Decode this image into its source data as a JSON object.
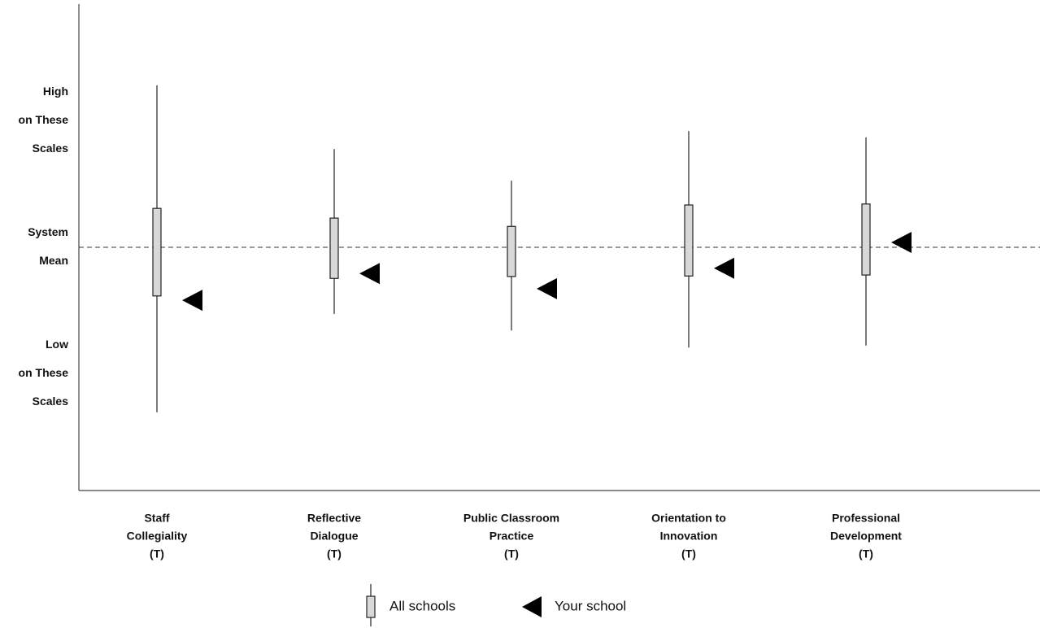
{
  "chart_data": {
    "type": "box",
    "categories": [
      [
        "Staff",
        "Collegiality",
        "(T)"
      ],
      [
        "Reflective",
        "Dialogue",
        "(T)"
      ],
      [
        "Public  Classroom",
        "Practice",
        "(T)"
      ],
      [
        "Orientation  to",
        "Innovation",
        "(T)"
      ],
      [
        "Professional",
        "Development",
        "(T)"
      ]
    ],
    "ylim": [
      0,
      100
    ],
    "yticks": [
      {
        "value": 76,
        "label": [
          "High",
          "on These",
          "Scales"
        ]
      },
      {
        "value": 50,
        "label": [
          "System",
          "Mean"
        ]
      },
      {
        "value": 24,
        "label": [
          "Low",
          "on These",
          "Scales"
        ]
      }
    ],
    "mean": 50,
    "series": [
      {
        "name": "All schools",
        "color": "#d8d8d8",
        "whisker_high": [
          83.3,
          70.2,
          63.7,
          73.9,
          72.6
        ],
        "q3": [
          58.0,
          56.0,
          54.3,
          58.7,
          58.9
        ],
        "q1": [
          40.0,
          43.6,
          44.0,
          44.1,
          44.3
        ],
        "whisker_low": [
          16.1,
          36.3,
          32.9,
          29.4,
          29.8
        ]
      },
      {
        "name": "Your school",
        "color": "#000000",
        "values": [
          39.1,
          44.6,
          41.5,
          45.7,
          51.0
        ]
      }
    ]
  }
}
